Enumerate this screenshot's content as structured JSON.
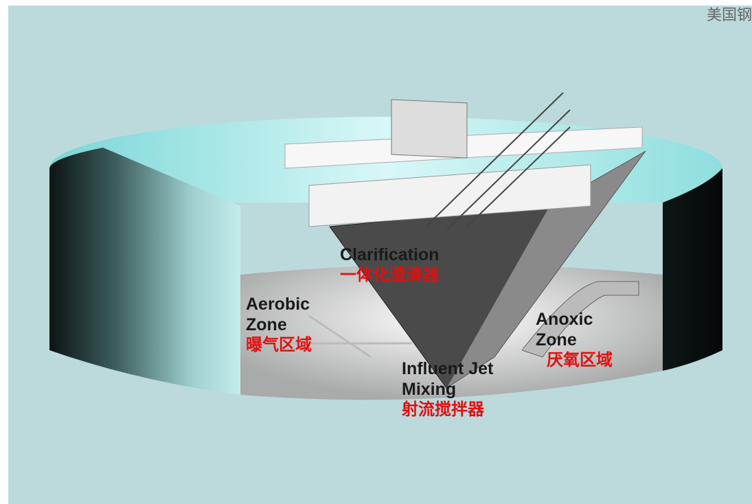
{
  "watermark": "美国钢",
  "labels": [
    {
      "en": "Clarification",
      "zh": "一体化澄清器"
    },
    {
      "en": "Aerobic Zone",
      "zh": "曝气区域"
    },
    {
      "en": "Anoxic Zone",
      "zh": "厌氧区域"
    },
    {
      "en": "Influent Jet Mixing",
      "zh": "射流搅拌器"
    }
  ]
}
